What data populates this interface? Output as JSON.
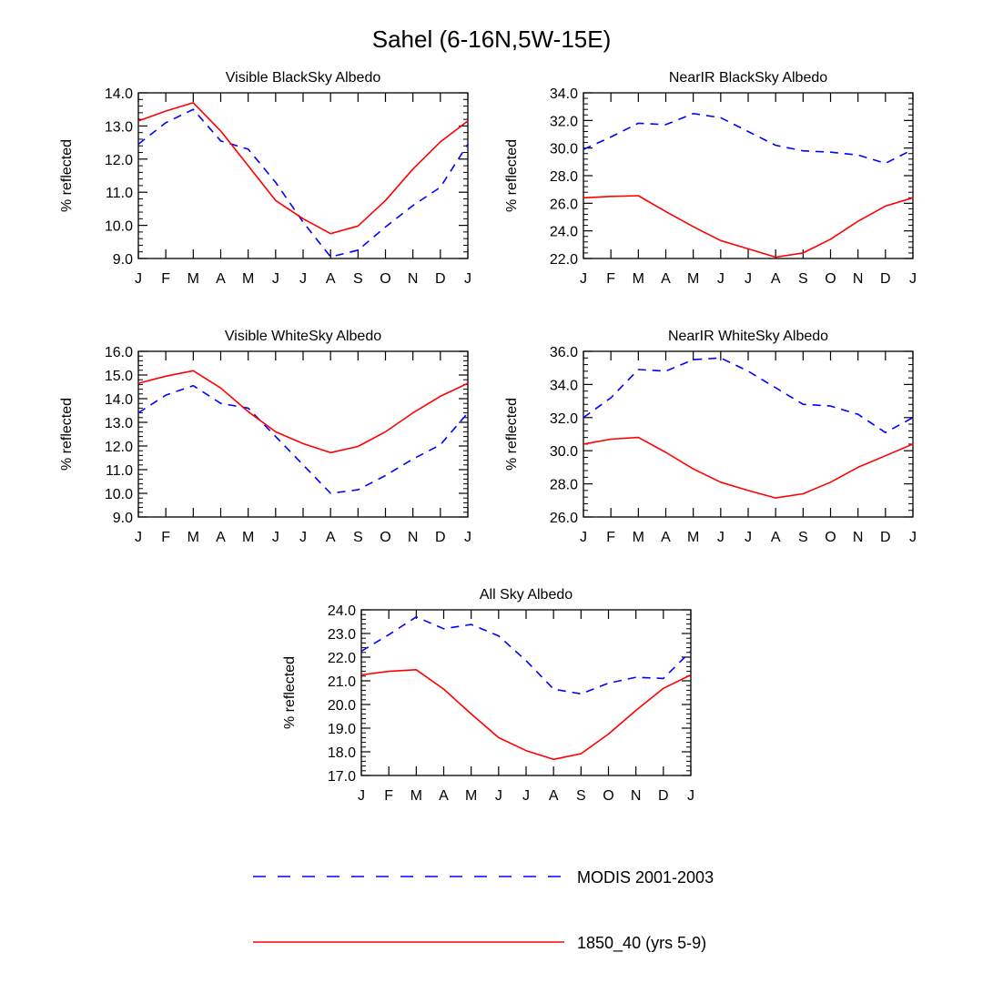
{
  "figure_title": "Sahel (6-16N,5W-15E)",
  "legend": [
    {
      "label": "MODIS 2001-2003",
      "style": "dashed",
      "color": "#0000ff"
    },
    {
      "label": "1850_40 (yrs 5-9)",
      "style": "solid",
      "color": "#ff0000"
    }
  ],
  "chart_data": [
    {
      "type": "line",
      "title": "Visible BlackSky Albedo",
      "ylabel": "% reflected",
      "categories": [
        "J",
        "F",
        "M",
        "A",
        "M",
        "J",
        "J",
        "A",
        "S",
        "O",
        "N",
        "D",
        "J"
      ],
      "ylim": [
        9.0,
        14.0
      ],
      "yticks": [
        "9.0",
        "10.0",
        "11.0",
        "12.0",
        "13.0",
        "14.0"
      ],
      "series": [
        {
          "name": "MODIS 2001-2003",
          "values": [
            12.45,
            13.1,
            13.5,
            12.55,
            12.3,
            11.3,
            10.1,
            9.05,
            9.25,
            9.95,
            10.6,
            11.15,
            12.45
          ]
        },
        {
          "name": "1850_40 (yrs 5-9)",
          "values": [
            13.15,
            13.45,
            13.7,
            12.85,
            11.8,
            10.75,
            10.2,
            9.75,
            9.98,
            10.75,
            11.7,
            12.52,
            13.15
          ]
        }
      ]
    },
    {
      "type": "line",
      "title": "NearIR BlackSky Albedo",
      "ylabel": "% reflected",
      "categories": [
        "J",
        "F",
        "M",
        "A",
        "M",
        "J",
        "J",
        "A",
        "S",
        "O",
        "N",
        "D",
        "J"
      ],
      "ylim": [
        22.0,
        34.0
      ],
      "yticks": [
        "22.0",
        "24.0",
        "26.0",
        "28.0",
        "30.0",
        "32.0",
        "34.0"
      ],
      "series": [
        {
          "name": "MODIS 2001-2003",
          "values": [
            29.9,
            30.8,
            31.8,
            31.7,
            32.5,
            32.2,
            31.2,
            30.2,
            29.8,
            29.7,
            29.5,
            28.9,
            29.9
          ]
        },
        {
          "name": "1850_40 (yrs 5-9)",
          "values": [
            26.4,
            26.5,
            26.55,
            25.4,
            24.3,
            23.3,
            22.7,
            22.1,
            22.4,
            23.4,
            24.7,
            25.8,
            26.4
          ]
        }
      ]
    },
    {
      "type": "line",
      "title": "Visible WhiteSky Albedo",
      "ylabel": "% reflected",
      "categories": [
        "J",
        "F",
        "M",
        "A",
        "M",
        "J",
        "J",
        "A",
        "S",
        "O",
        "N",
        "D",
        "J"
      ],
      "ylim": [
        9.0,
        16.0
      ],
      "yticks": [
        "9.0",
        "10.0",
        "11.0",
        "12.0",
        "13.0",
        "14.0",
        "15.0",
        "16.0"
      ],
      "series": [
        {
          "name": "MODIS 2001-2003",
          "values": [
            13.4,
            14.15,
            14.55,
            13.8,
            13.6,
            12.4,
            11.2,
            10.0,
            10.15,
            10.75,
            11.45,
            12.05,
            13.4
          ]
        },
        {
          "name": "1850_40 (yrs 5-9)",
          "values": [
            14.65,
            14.95,
            15.18,
            14.45,
            13.45,
            12.6,
            12.1,
            11.72,
            11.98,
            12.6,
            13.4,
            14.1,
            14.65
          ]
        }
      ]
    },
    {
      "type": "line",
      "title": "NearIR WhiteSky Albedo",
      "ylabel": "% reflected",
      "categories": [
        "J",
        "F",
        "M",
        "A",
        "M",
        "J",
        "J",
        "A",
        "S",
        "O",
        "N",
        "D",
        "J"
      ],
      "ylim": [
        26.0,
        36.0
      ],
      "yticks": [
        "26.0",
        "28.0",
        "30.0",
        "32.0",
        "34.0",
        "36.0"
      ],
      "series": [
        {
          "name": "MODIS 2001-2003",
          "values": [
            32.0,
            33.2,
            34.9,
            34.8,
            35.5,
            35.6,
            34.8,
            33.8,
            32.8,
            32.7,
            32.2,
            31.1,
            32.0
          ]
        },
        {
          "name": "1850_40 (yrs 5-9)",
          "values": [
            30.4,
            30.7,
            30.8,
            29.9,
            28.9,
            28.1,
            27.6,
            27.15,
            27.4,
            28.1,
            29.0,
            29.7,
            30.4
          ]
        }
      ]
    },
    {
      "type": "line",
      "title": "All Sky Albedo",
      "ylabel": "% reflected",
      "categories": [
        "J",
        "F",
        "M",
        "A",
        "M",
        "J",
        "J",
        "A",
        "S",
        "O",
        "N",
        "D",
        "J"
      ],
      "ylim": [
        17.0,
        24.0
      ],
      "yticks": [
        "17.0",
        "18.0",
        "19.0",
        "20.0",
        "21.0",
        "22.0",
        "23.0",
        "24.0"
      ],
      "series": [
        {
          "name": "MODIS 2001-2003",
          "values": [
            22.25,
            22.95,
            23.7,
            23.2,
            23.38,
            22.9,
            21.85,
            20.65,
            20.45,
            20.9,
            21.15,
            21.1,
            22.25
          ]
        },
        {
          "name": "1850_40 (yrs 5-9)",
          "values": [
            21.25,
            21.4,
            21.47,
            20.65,
            19.6,
            18.6,
            18.05,
            17.68,
            17.92,
            18.75,
            19.75,
            20.68,
            21.25
          ]
        }
      ]
    }
  ]
}
